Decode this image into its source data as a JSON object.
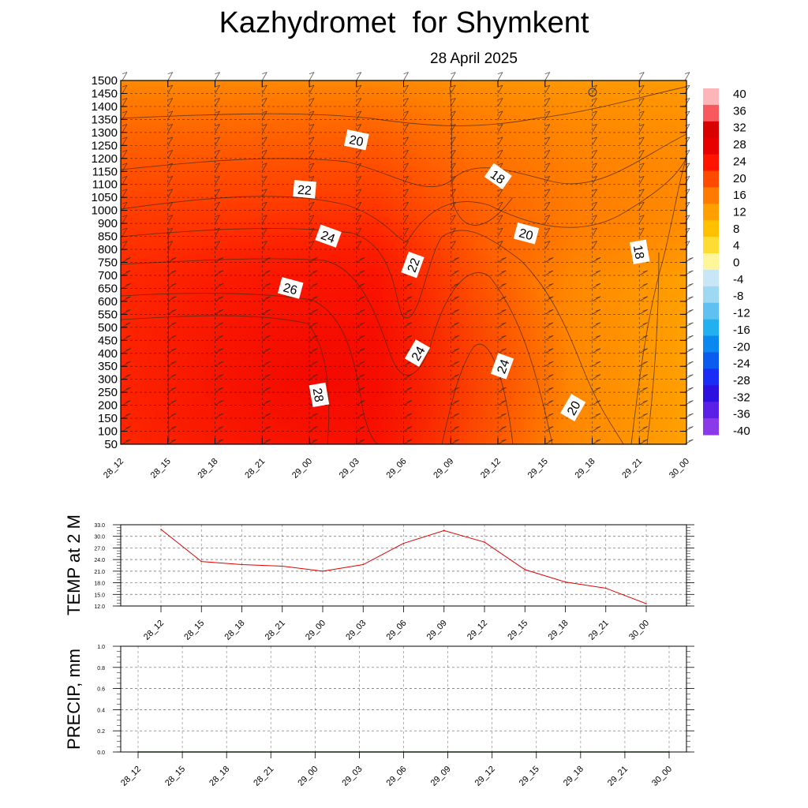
{
  "header": {
    "title": "Kazhydromet  for Shymkent",
    "date": "28 April 2025"
  },
  "chart_data": [
    {
      "type": "heatmap",
      "time_labels": [
        "28_12",
        "28_15",
        "28_18",
        "28_21",
        "29_00",
        "29_03",
        "29_06",
        "29_09",
        "29_12",
        "29_15",
        "29_18",
        "29_21",
        "30_00"
      ],
      "y_labels": [
        "1500",
        "1450",
        "1400",
        "1350",
        "1300",
        "1250",
        "1200",
        "1150",
        "1100",
        "1050",
        "1000",
        "900",
        "850",
        "800",
        "750",
        "700",
        "650",
        "600",
        "550",
        "500",
        "450",
        "400",
        "350",
        "300",
        "250",
        "200",
        "150",
        "100",
        "50"
      ],
      "contour_labels": [
        {
          "value": "20",
          "t": 5.0,
          "h": 1270
        },
        {
          "value": "18",
          "t": 8.0,
          "h": 1130
        },
        {
          "value": "22",
          "t": 3.9,
          "h": 1080
        },
        {
          "value": "24",
          "t": 4.4,
          "h": 850
        },
        {
          "value": "20",
          "t": 8.6,
          "h": 860
        },
        {
          "value": "18",
          "t": 11.0,
          "h": 790
        },
        {
          "value": "22",
          "t": 6.2,
          "h": 740
        },
        {
          "value": "26",
          "t": 3.6,
          "h": 650
        },
        {
          "value": "24",
          "t": 6.3,
          "h": 400
        },
        {
          "value": "24",
          "t": 8.1,
          "h": 350
        },
        {
          "value": "28",
          "t": 4.2,
          "h": 240
        },
        {
          "value": "20",
          "t": 9.6,
          "h": 190
        }
      ],
      "colorbar_labels": [
        "40",
        "36",
        "32",
        "28",
        "24",
        "20",
        "16",
        "12",
        "8",
        "4",
        "0",
        "-4",
        "-8",
        "-12",
        "-16",
        "-20",
        "-24",
        "-28",
        "-32",
        "-36",
        "-40"
      ],
      "colorbar_colors": [
        "#fdb5b9",
        "#f7595e",
        "#d90000",
        "#e80000",
        "#ff1400",
        "#ff4a00",
        "#ff7a00",
        "#ffa000",
        "#ffc000",
        "#ffdc33",
        "#fff59a",
        "#c8e6f5",
        "#9ed8f2",
        "#5fc1f2",
        "#22b0f0",
        "#0a88f0",
        "#0a5cf0",
        "#1a2cf5",
        "#2b10e0",
        "#5a20e8",
        "#8a3ae8"
      ],
      "grid": true
    },
    {
      "type": "line",
      "ylabel": "TEMP at 2 M",
      "y_ticks": [
        "33.0",
        "30.0",
        "27.0",
        "24.0",
        "21.0",
        "18.0",
        "15.0",
        "12.0"
      ],
      "ylim": [
        12,
        33
      ],
      "categories": [
        "28_12",
        "28_15",
        "28_18",
        "28_21",
        "29_00",
        "29_03",
        "29_06",
        "29_09",
        "29_12",
        "29_15",
        "29_18",
        "29_21",
        "30_00"
      ],
      "values": [
        31.8,
        23.5,
        22.7,
        22.3,
        21.0,
        22.7,
        28.2,
        31.5,
        28.5,
        21.4,
        18.2,
        16.6,
        12.6
      ],
      "line_color": "#e00000",
      "grid": true
    },
    {
      "type": "line",
      "ylabel": "PRECIP, mm",
      "y_ticks": [
        "1.0",
        "0.8",
        "0.6",
        "0.4",
        "0.2",
        "0.0"
      ],
      "ylim": [
        0,
        1
      ],
      "categories": [
        "28_12",
        "28_15",
        "28_18",
        "28_21",
        "29_00",
        "29_03",
        "29_06",
        "29_09",
        "29_12",
        "29_15",
        "29_18",
        "29_21",
        "30_00"
      ],
      "values": [
        0,
        0,
        0,
        0,
        0,
        0,
        0,
        0,
        0,
        0,
        0,
        0,
        0
      ],
      "line_color": "#1a7a1a",
      "grid": true
    }
  ]
}
